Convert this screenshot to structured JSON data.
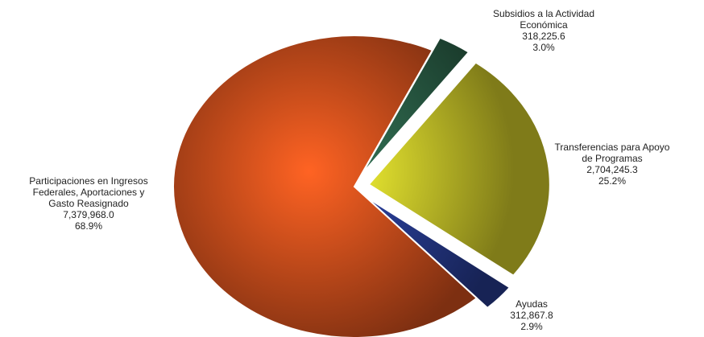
{
  "chart_data": {
    "type": "pie",
    "title": "",
    "slices": [
      {
        "key": "subsidios",
        "label_lines": [
          "Subsidios a la Actividad",
          "Económica"
        ],
        "value": "318,225.6",
        "percent": "3.0%",
        "numeric_value": 318225.6,
        "color": "#2f6a4f",
        "exploded": true
      },
      {
        "key": "transferencias",
        "label_lines": [
          "Transferencias para Apoyo",
          "de Programas"
        ],
        "value": "2,704,245.3",
        "percent": "25.2%",
        "numeric_value": 2704245.3,
        "color": "#e6df2e",
        "exploded": true
      },
      {
        "key": "ayudas",
        "label_lines": [
          "Ayudas"
        ],
        "value": "312,867.8",
        "percent": "2.9%",
        "numeric_value": 312867.8,
        "color": "#2a3f9a",
        "exploded": true
      },
      {
        "key": "participaciones",
        "label_lines": [
          "Participaciones en Ingresos",
          "Federales, Aportaciones y",
          "Gasto Reasignado"
        ],
        "value": "7,379,968.0",
        "percent": "68.9%",
        "numeric_value": 7379968.0,
        "color": "#e4561e",
        "exploded": false
      }
    ]
  }
}
